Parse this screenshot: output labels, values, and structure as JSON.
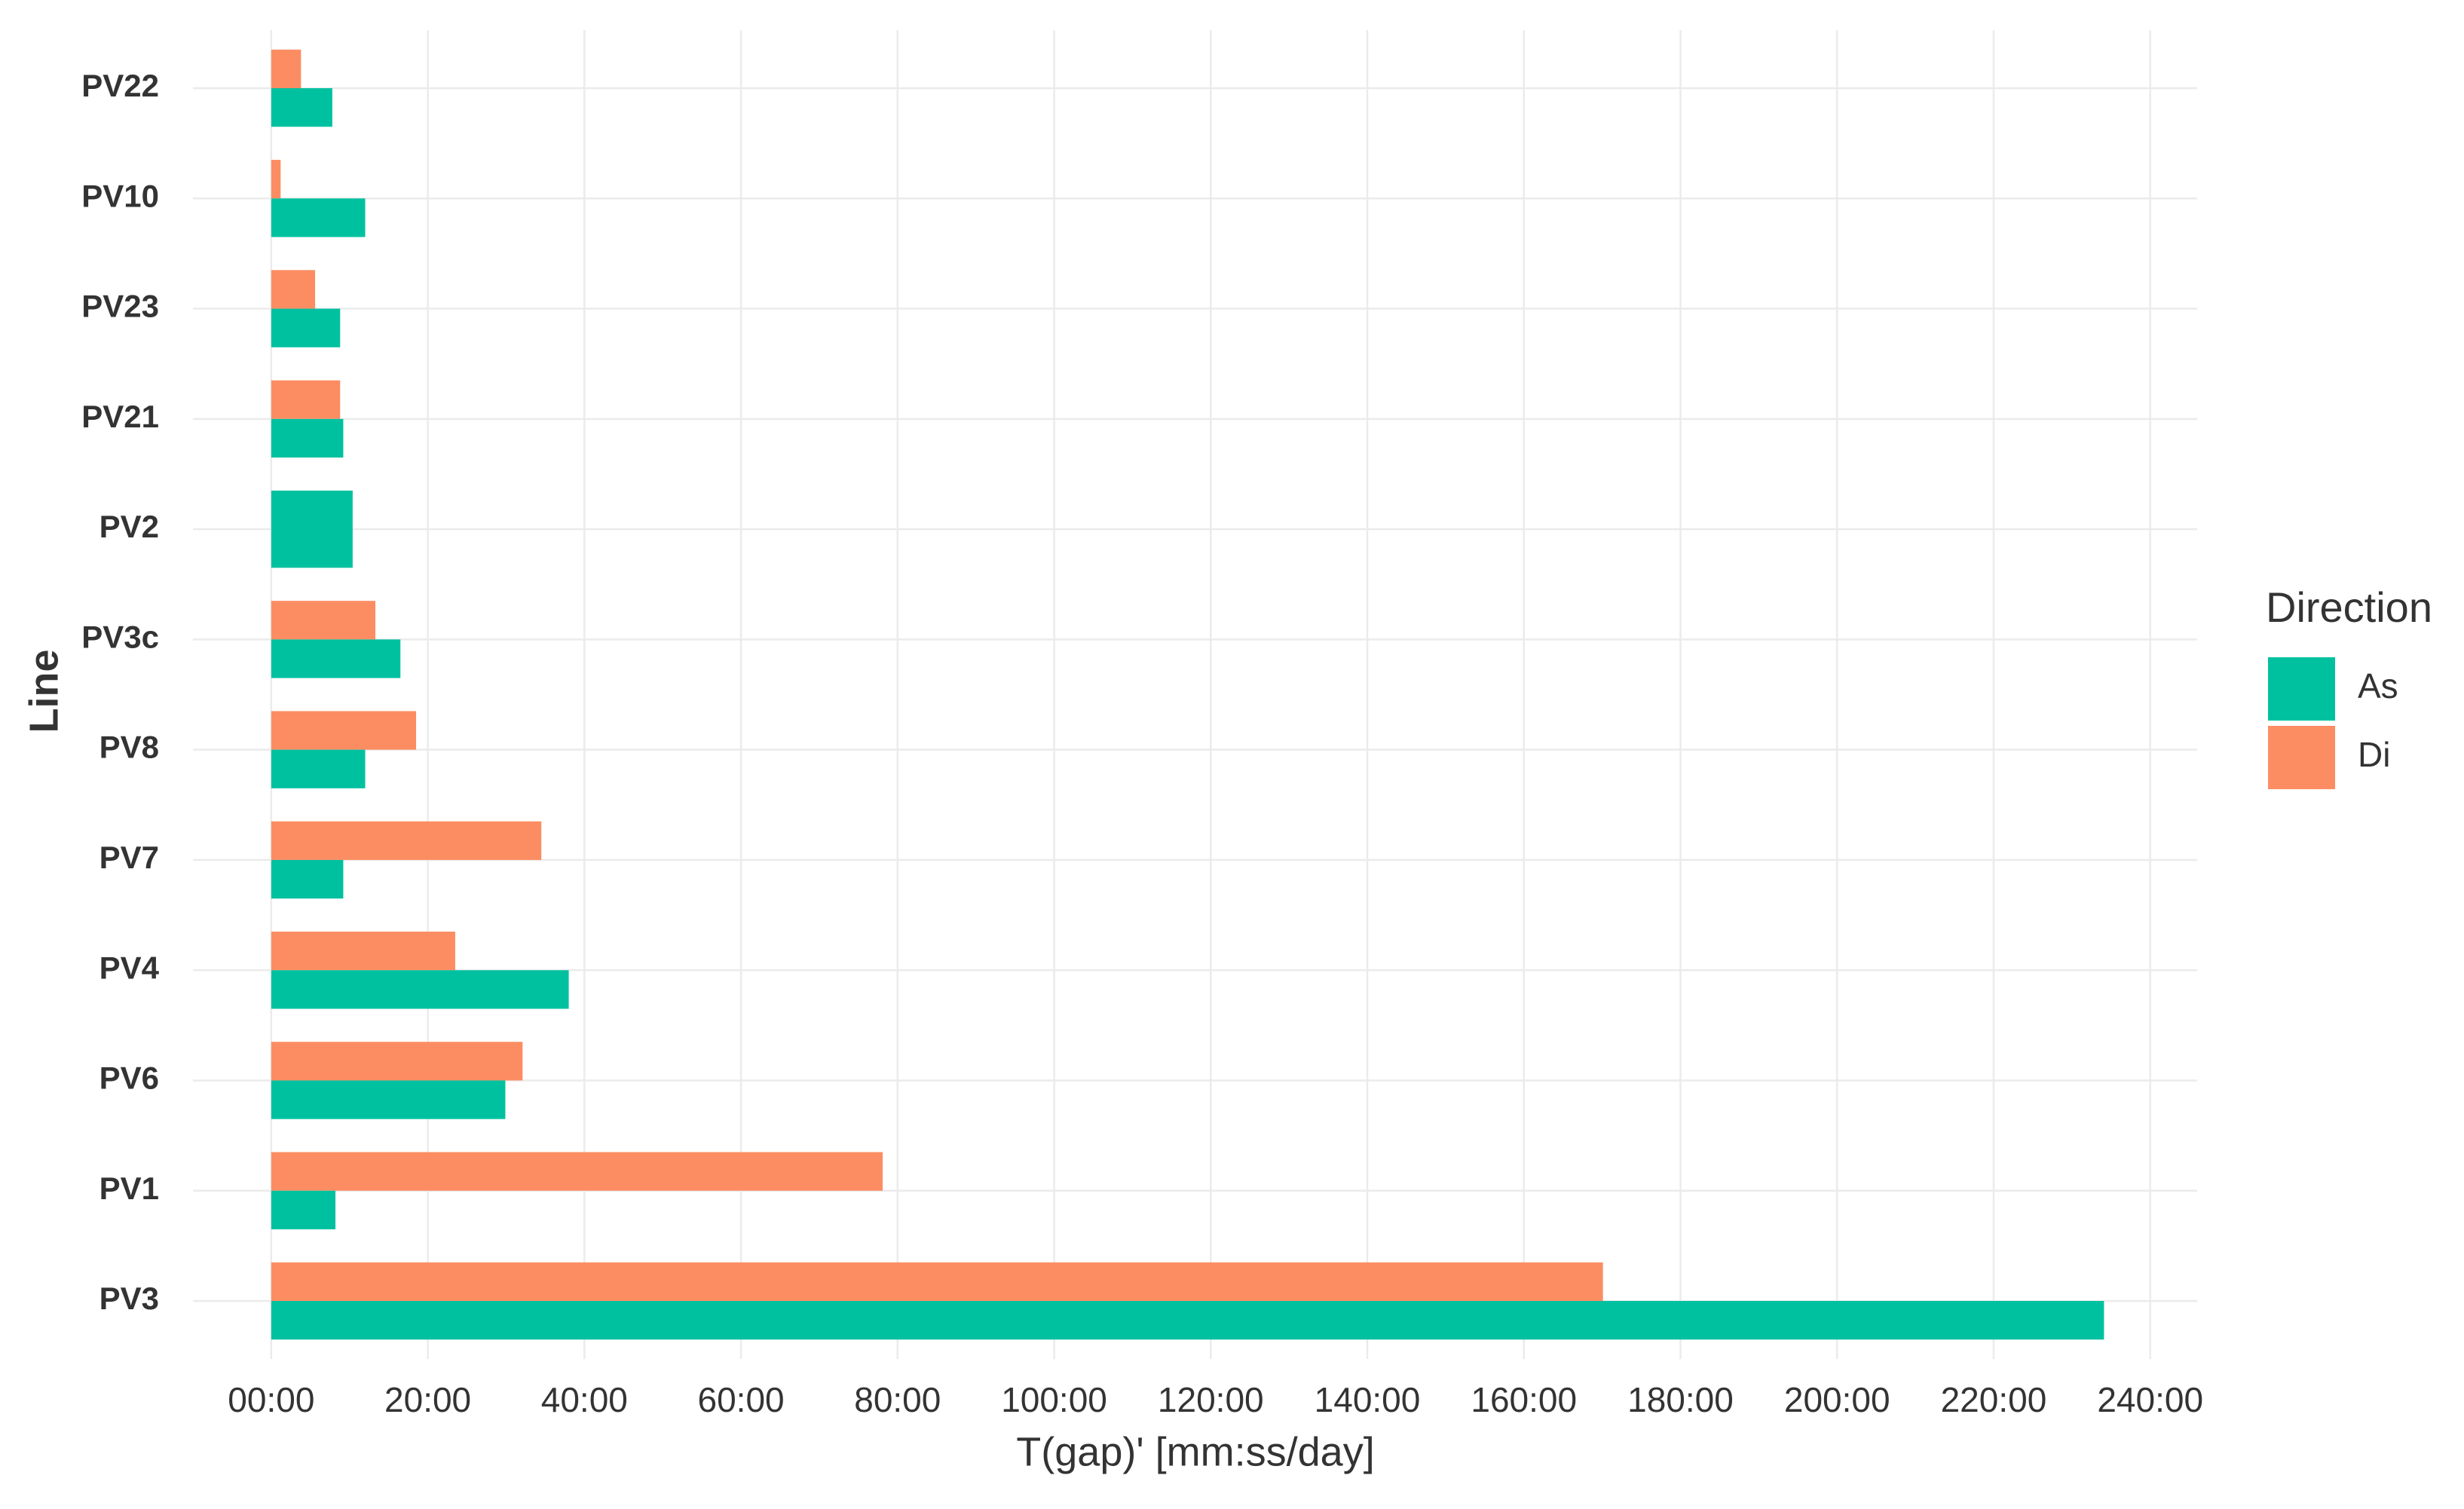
{
  "chart_data": {
    "type": "bar",
    "orientation": "horizontal",
    "x_label": "T(gap)' [mm:ss/day]",
    "y_label": "Line",
    "legend_title": "Direction",
    "legend_position": "right",
    "categories": [
      "PV22",
      "PV10",
      "PV23",
      "PV21",
      "PV2",
      "PV3c",
      "PV8",
      "PV7",
      "PV4",
      "PV6",
      "PV1",
      "PV3"
    ],
    "series": [
      {
        "name": "Di",
        "color": "#fc8d62",
        "values": [
          3.8,
          1.2,
          5.6,
          8.8,
          null,
          13.3,
          18.5,
          34.5,
          23.5,
          32.1,
          78.1,
          170.1
        ]
      },
      {
        "name": "As",
        "color": "#00c19f",
        "values": [
          7.8,
          12,
          8.8,
          9.2,
          10.4,
          16.5,
          12,
          9.2,
          38,
          29.9,
          8.2,
          234.1
        ]
      }
    ],
    "legend_order": [
      1,
      0
    ],
    "xlim": [
      -10,
      246
    ],
    "xticks": [
      {
        "value": 0,
        "label": "00:00"
      },
      {
        "value": 20,
        "label": "20:00"
      },
      {
        "value": 40,
        "label": "40:00"
      },
      {
        "value": 60,
        "label": "60:00"
      },
      {
        "value": 80,
        "label": "80:00"
      },
      {
        "value": 100,
        "label": "100:00"
      },
      {
        "value": 120,
        "label": "120:00"
      },
      {
        "value": 140,
        "label": "140:00"
      },
      {
        "value": 160,
        "label": "160:00"
      },
      {
        "value": 180,
        "label": "180:00"
      },
      {
        "value": 200,
        "label": "200:00"
      },
      {
        "value": 220,
        "label": "220:00"
      },
      {
        "value": 240,
        "label": "240:00"
      }
    ],
    "grid": true
  }
}
